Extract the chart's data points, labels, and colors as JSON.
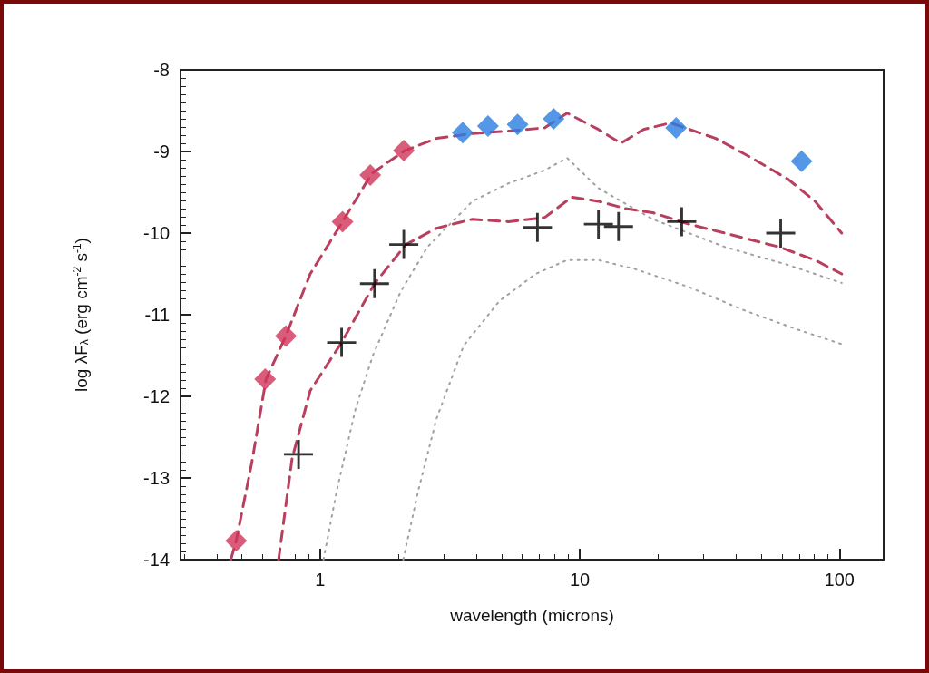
{
  "chart_data": {
    "type": "scatter",
    "xlabel": "wavelength (microns)",
    "ylabel": "log λF$_{λ}$ (erg cm$^{-2}$ s$^{-1}$)",
    "log": "x",
    "xlim": [
      0.29,
      148
    ],
    "xticks": [
      1,
      10,
      100
    ],
    "ylim": [
      -14,
      -8
    ],
    "yticks": [
      -14,
      -13,
      -12,
      -11,
      -10,
      -9,
      -8
    ],
    "grid": false,
    "series": [
      {
        "type": "line",
        "line_style": "dotted",
        "marker": "none",
        "color": "#a0a0a0",
        "x": [
          1.03,
          1.16,
          1.37,
          1.6,
          2.04,
          2.59,
          3.86,
          5.32,
          7.32,
          8.94,
          11.8,
          19.1,
          36.2,
          63.4,
          102
        ],
        "values": [
          -14.0,
          -13.15,
          -12.15,
          -11.49,
          -10.72,
          -10.17,
          -9.61,
          -9.39,
          -9.23,
          -9.08,
          -9.45,
          -9.83,
          -10.17,
          -10.39,
          -10.61
        ]
      },
      {
        "type": "line",
        "line_style": "dotted",
        "marker": "none",
        "color": "#a0a0a0",
        "x": [
          2.09,
          2.39,
          2.81,
          3.57,
          4.91,
          6.76,
          8.94,
          11.8,
          16.3,
          26.3,
          42.5,
          68.7,
          102
        ],
        "values": [
          -14.0,
          -13.15,
          -12.27,
          -11.38,
          -10.83,
          -10.5,
          -10.33,
          -10.33,
          -10.44,
          -10.66,
          -10.94,
          -11.18,
          -11.36
        ]
      },
      {
        "type": "line",
        "line_style": "dashed",
        "marker": "none",
        "color": "#b8405e",
        "x": [
          0.453,
          0.475,
          0.545,
          0.619,
          0.738,
          0.916,
          1.22,
          1.58,
          2.12,
          2.81,
          3.86,
          5.32,
          7.32,
          8.94,
          11.8,
          14.4,
          17.6,
          22.4,
          33.4,
          46.0,
          63.4,
          80.5,
          102
        ],
        "values": [
          -14.0,
          -13.77,
          -12.82,
          -11.79,
          -11.26,
          -10.5,
          -9.86,
          -9.27,
          -8.99,
          -8.84,
          -8.78,
          -8.75,
          -8.71,
          -8.53,
          -8.73,
          -8.9,
          -8.73,
          -8.65,
          -8.84,
          -9.08,
          -9.34,
          -9.61,
          -10.0
        ]
      },
      {
        "type": "line",
        "line_style": "dashed",
        "marker": "none",
        "color": "#b8405e",
        "x": [
          0.692,
          0.78,
          0.916,
          1.21,
          1.62,
          2.14,
          2.81,
          3.86,
          5.32,
          7.32,
          9.31,
          11.8,
          15.0,
          19.1,
          26.3,
          36.2,
          58.5,
          80.5,
          102
        ],
        "values": [
          -14.0,
          -12.76,
          -11.93,
          -11.34,
          -10.62,
          -10.14,
          -9.94,
          -9.83,
          -9.86,
          -9.81,
          -9.56,
          -9.61,
          -9.7,
          -9.75,
          -9.89,
          -10.0,
          -10.17,
          -10.33,
          -10.5
        ]
      },
      {
        "marker": "diamond",
        "color": "#d0345a",
        "x": [
          0.475,
          0.614,
          0.738,
          1.22,
          1.56,
          2.1
        ],
        "values": [
          -13.77,
          -11.79,
          -11.26,
          -9.86,
          -9.29,
          -8.99
        ]
      },
      {
        "marker": "diamond",
        "color": "#2a7de1",
        "x": [
          3.54,
          4.43,
          5.76,
          7.93,
          23.5,
          71.5
        ],
        "values": [
          -8.77,
          -8.69,
          -8.67,
          -8.6,
          -8.71,
          -9.12
        ]
      },
      {
        "marker": "cross",
        "color": "#000000",
        "x": [
          0.826,
          1.21,
          1.62,
          2.1,
          6.87,
          11.8,
          14.1,
          24.7,
          59.4
        ],
        "values": [
          -12.71,
          -11.34,
          -10.62,
          -10.14,
          -9.93,
          -9.89,
          -9.92,
          -9.86,
          -10.0
        ]
      }
    ]
  }
}
